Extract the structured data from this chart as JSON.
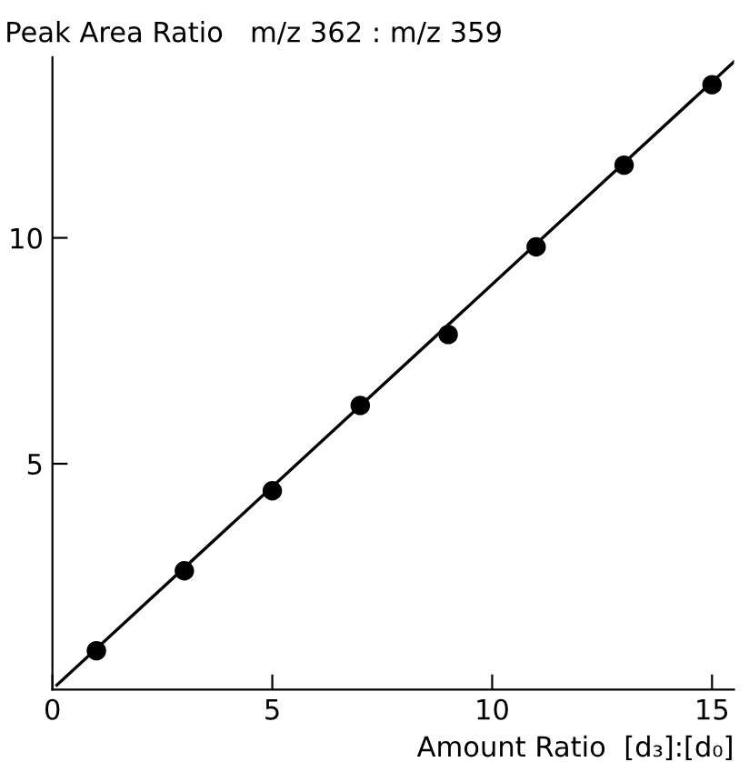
{
  "chart_data": {
    "type": "scatter",
    "ylabel": "Peak Area Ratio   m/z 362 : m/z 359",
    "xlabel": "Amount Ratio  [d₃]:[d₀]",
    "xlim": [
      0,
      15.5
    ],
    "ylim": [
      0,
      14
    ],
    "xticks": [
      0,
      5,
      10,
      15
    ],
    "yticks": [
      5,
      10
    ],
    "grid": false,
    "marker": "circle",
    "series": [
      {
        "color": "#000000",
        "x": [
          1,
          3,
          5,
          7,
          9,
          11,
          13,
          15
        ],
        "values": [
          0.86,
          2.63,
          4.4,
          6.29,
          7.86,
          9.8,
          11.61,
          13.39
        ]
      },
      {
        "type": "line",
        "color": "#000000",
        "marker": "none",
        "line_style": "solid",
        "x": [
          0.1,
          15.5
        ],
        "values": [
          0.1,
          13.9
        ]
      }
    ]
  }
}
